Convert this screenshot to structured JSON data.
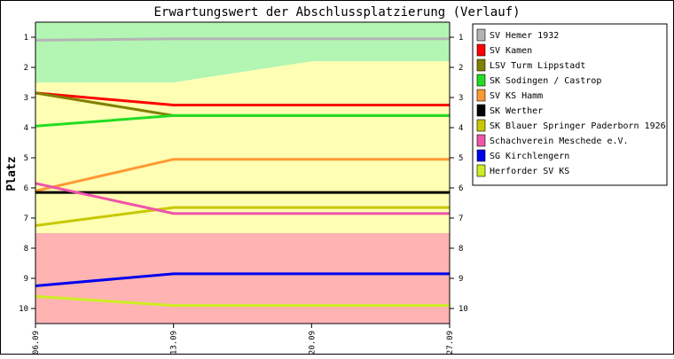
{
  "chart_data": {
    "type": "line",
    "title": "Erwartungswert der Abschlussplatzierung (Verlauf)",
    "ylabel": "Platz",
    "xlabel": "",
    "x": [
      "06.09",
      "13.09",
      "20.09",
      "27.09"
    ],
    "ylim": [
      0.5,
      10.5
    ],
    "y_inverted": true,
    "yticks": [
      1,
      2,
      3,
      4,
      5,
      6,
      7,
      8,
      9,
      10
    ],
    "grid": false,
    "legend": "right",
    "zones": [
      {
        "name": "top",
        "color": "#b3f5b3",
        "upper": [
          2.5,
          2.5,
          1.8,
          1.8
        ]
      },
      {
        "name": "middle",
        "color": "#ffffb3",
        "upper": [
          7.5,
          7.5,
          7.5,
          7.5
        ]
      },
      {
        "name": "bottom",
        "color": "#ffb3b3",
        "upper": [
          10.5,
          10.5,
          10.5,
          10.5
        ]
      }
    ],
    "series": [
      {
        "name": "SV Hemer 1932",
        "color": "#b4b4b4",
        "values": [
          1.1,
          1.05,
          1.05,
          1.05
        ]
      },
      {
        "name": "SV Kamen",
        "color": "#ff0000",
        "values": [
          2.85,
          3.25,
          3.25,
          3.25
        ]
      },
      {
        "name": "LSV Turm Lippstadt",
        "color": "#808000",
        "values": [
          2.85,
          3.6,
          3.6,
          3.6
        ]
      },
      {
        "name": "SK Sodingen / Castrop",
        "color": "#22dd22",
        "values": [
          3.95,
          3.6,
          3.6,
          3.6
        ]
      },
      {
        "name": "SV KS Hamm",
        "color": "#ff9933",
        "values": [
          6.1,
          5.05,
          5.05,
          5.05
        ]
      },
      {
        "name": "SK Werther",
        "color": "#000000",
        "values": [
          6.15,
          6.15,
          6.15,
          6.15
        ]
      },
      {
        "name": "SK Blauer Springer Paderborn 1926",
        "color": "#c8c800",
        "values": [
          7.25,
          6.65,
          6.65,
          6.65
        ]
      },
      {
        "name": "Schachverein Meschede e.V.",
        "color": "#ee55aa",
        "values": [
          5.85,
          6.85,
          6.85,
          6.85
        ]
      },
      {
        "name": "SG Kirchlengern",
        "color": "#0000ee",
        "values": [
          9.25,
          8.85,
          8.85,
          8.85
        ]
      },
      {
        "name": "Herforder SV KS",
        "color": "#ccee22",
        "values": [
          9.6,
          9.9,
          9.9,
          9.9
        ]
      }
    ]
  }
}
